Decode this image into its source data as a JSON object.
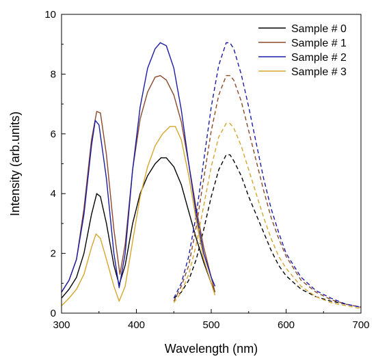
{
  "chart_data": {
    "type": "line",
    "xlabel": "Wavelength (nm)",
    "ylabel": "Intensity (arb.units)",
    "xlim": [
      300,
      700
    ],
    "ylim": [
      0,
      10
    ],
    "xticks": [
      300,
      400,
      500,
      600,
      700
    ],
    "yticks": [
      0,
      2,
      4,
      6,
      8,
      10
    ],
    "grid": false,
    "legend": "top-right",
    "series": [
      {
        "name": "Sample # 0",
        "color": "#000000",
        "excitation": {
          "style": "solid",
          "points": [
            [
              300,
              0.5
            ],
            [
              310,
              0.8
            ],
            [
              320,
              1.2
            ],
            [
              330,
              2.0
            ],
            [
              340,
              3.3
            ],
            [
              347,
              4.0
            ],
            [
              352,
              3.9
            ],
            [
              360,
              3.0
            ],
            [
              370,
              1.6
            ],
            [
              377,
              0.95
            ],
            [
              385,
              1.6
            ],
            [
              395,
              3.0
            ],
            [
              405,
              4.0
            ],
            [
              415,
              4.6
            ],
            [
              425,
              5.0
            ],
            [
              433,
              5.2
            ],
            [
              440,
              5.2
            ],
            [
              450,
              4.9
            ],
            [
              460,
              4.3
            ],
            [
              470,
              3.4
            ],
            [
              480,
              2.5
            ],
            [
              490,
              1.7
            ],
            [
              500,
              1.0
            ],
            [
              505,
              0.7
            ]
          ]
        },
        "emission": {
          "style": "dashed",
          "points": [
            [
              450,
              0.5
            ],
            [
              460,
              0.7
            ],
            [
              470,
              1.1
            ],
            [
              480,
              1.8
            ],
            [
              490,
              2.8
            ],
            [
              500,
              3.9
            ],
            [
              510,
              4.8
            ],
            [
              520,
              5.3
            ],
            [
              525,
              5.3
            ],
            [
              530,
              5.1
            ],
            [
              540,
              4.6
            ],
            [
              550,
              3.9
            ],
            [
              560,
              3.3
            ],
            [
              570,
              2.7
            ],
            [
              580,
              2.1
            ],
            [
              590,
              1.6
            ],
            [
              600,
              1.25
            ],
            [
              620,
              0.8
            ],
            [
              640,
              0.55
            ],
            [
              660,
              0.4
            ],
            [
              680,
              0.3
            ],
            [
              700,
              0.2
            ]
          ]
        }
      },
      {
        "name": "Sample # 1",
        "color": "#8b4726",
        "excitation": {
          "style": "solid",
          "points": [
            [
              300,
              0.7
            ],
            [
              310,
              1.1
            ],
            [
              320,
              1.8
            ],
            [
              330,
              3.5
            ],
            [
              340,
              5.8
            ],
            [
              347,
              6.75
            ],
            [
              352,
              6.7
            ],
            [
              360,
              5.3
            ],
            [
              370,
              2.8
            ],
            [
              378,
              1.3
            ],
            [
              385,
              2.3
            ],
            [
              395,
              4.8
            ],
            [
              405,
              6.5
            ],
            [
              415,
              7.4
            ],
            [
              425,
              7.9
            ],
            [
              432,
              7.95
            ],
            [
              440,
              7.8
            ],
            [
              450,
              7.3
            ],
            [
              460,
              6.4
            ],
            [
              470,
              5.0
            ],
            [
              480,
              3.5
            ],
            [
              490,
              2.2
            ],
            [
              500,
              1.2
            ],
            [
              505,
              0.7
            ]
          ]
        },
        "emission": {
          "style": "dashed",
          "points": [
            [
              450,
              0.4
            ],
            [
              460,
              0.9
            ],
            [
              470,
              1.6
            ],
            [
              480,
              2.9
            ],
            [
              490,
              4.5
            ],
            [
              500,
              6.1
            ],
            [
              510,
              7.3
            ],
            [
              520,
              7.95
            ],
            [
              525,
              7.95
            ],
            [
              530,
              7.8
            ],
            [
              540,
              7.1
            ],
            [
              550,
              6.1
            ],
            [
              560,
              5.1
            ],
            [
              570,
              4.1
            ],
            [
              580,
              3.2
            ],
            [
              590,
              2.5
            ],
            [
              600,
              1.9
            ],
            [
              620,
              1.1
            ],
            [
              640,
              0.7
            ],
            [
              660,
              0.45
            ],
            [
              680,
              0.3
            ],
            [
              700,
              0.2
            ]
          ]
        }
      },
      {
        "name": "Sample # 2",
        "color": "#1a1aa6",
        "excitation": {
          "style": "solid",
          "points": [
            [
              300,
              0.7
            ],
            [
              310,
              1.1
            ],
            [
              320,
              1.8
            ],
            [
              330,
              3.3
            ],
            [
              340,
              5.6
            ],
            [
              345,
              6.45
            ],
            [
              350,
              6.3
            ],
            [
              360,
              4.5
            ],
            [
              370,
              2.0
            ],
            [
              377,
              0.85
            ],
            [
              385,
              2.0
            ],
            [
              395,
              4.8
            ],
            [
              405,
              6.9
            ],
            [
              415,
              8.2
            ],
            [
              425,
              8.85
            ],
            [
              432,
              9.05
            ],
            [
              440,
              8.95
            ],
            [
              450,
              8.2
            ],
            [
              460,
              6.8
            ],
            [
              470,
              5.0
            ],
            [
              480,
              3.3
            ],
            [
              490,
              2.0
            ],
            [
              500,
              1.2
            ],
            [
              505,
              0.9
            ]
          ]
        },
        "emission": {
          "style": "dashed",
          "points": [
            [
              450,
              0.5
            ],
            [
              460,
              1.0
            ],
            [
              470,
              1.9
            ],
            [
              480,
              3.3
            ],
            [
              490,
              5.1
            ],
            [
              500,
              6.9
            ],
            [
              510,
              8.3
            ],
            [
              520,
              9.05
            ],
            [
              525,
              9.05
            ],
            [
              530,
              8.85
            ],
            [
              540,
              8.0
            ],
            [
              550,
              6.9
            ],
            [
              560,
              5.7
            ],
            [
              570,
              4.5
            ],
            [
              580,
              3.5
            ],
            [
              590,
              2.7
            ],
            [
              600,
              2.0
            ],
            [
              620,
              1.2
            ],
            [
              640,
              0.75
            ],
            [
              660,
              0.5
            ],
            [
              680,
              0.3
            ],
            [
              700,
              0.2
            ]
          ]
        }
      },
      {
        "name": "Sample # 3",
        "color": "#d4a52a",
        "excitation": {
          "style": "solid",
          "points": [
            [
              300,
              0.25
            ],
            [
              310,
              0.5
            ],
            [
              320,
              0.8
            ],
            [
              330,
              1.3
            ],
            [
              340,
              2.2
            ],
            [
              346,
              2.65
            ],
            [
              352,
              2.5
            ],
            [
              360,
              1.8
            ],
            [
              370,
              0.9
            ],
            [
              377,
              0.4
            ],
            [
              385,
              0.9
            ],
            [
              395,
              2.4
            ],
            [
              405,
              3.9
            ],
            [
              415,
              4.9
            ],
            [
              425,
              5.6
            ],
            [
              435,
              6.0
            ],
            [
              445,
              6.25
            ],
            [
              452,
              6.25
            ],
            [
              460,
              5.8
            ],
            [
              470,
              4.6
            ],
            [
              480,
              3.1
            ],
            [
              490,
              1.8
            ],
            [
              500,
              1.0
            ],
            [
              505,
              0.6
            ]
          ]
        },
        "emission": {
          "style": "dashed",
          "points": [
            [
              450,
              0.35
            ],
            [
              460,
              0.7
            ],
            [
              470,
              1.3
            ],
            [
              480,
              2.3
            ],
            [
              490,
              3.6
            ],
            [
              500,
              4.9
            ],
            [
              510,
              5.9
            ],
            [
              520,
              6.35
            ],
            [
              525,
              6.35
            ],
            [
              530,
              6.2
            ],
            [
              540,
              5.6
            ],
            [
              550,
              4.8
            ],
            [
              560,
              4.0
            ],
            [
              570,
              3.2
            ],
            [
              580,
              2.5
            ],
            [
              590,
              1.9
            ],
            [
              600,
              1.5
            ],
            [
              620,
              0.9
            ],
            [
              640,
              0.55
            ],
            [
              660,
              0.35
            ],
            [
              680,
              0.25
            ],
            [
              700,
              0.15
            ]
          ]
        }
      }
    ]
  }
}
